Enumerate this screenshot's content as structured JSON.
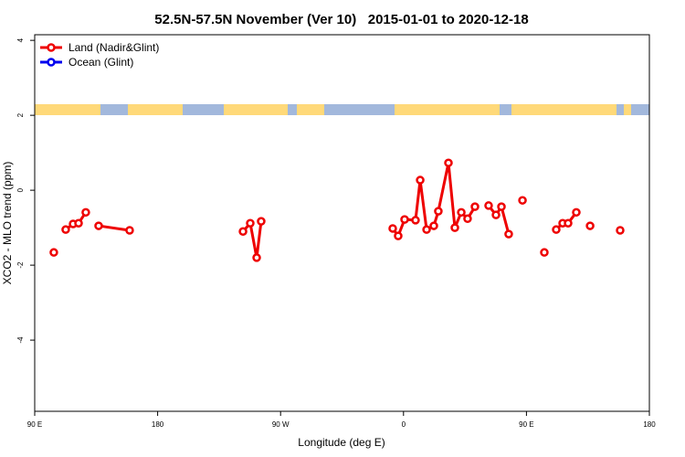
{
  "chart_data": {
    "type": "line",
    "title": "52.5N-57.5N November (Ver 10)   2015-01-01 to 2020-12-18",
    "x_label": "Longitude (deg E)",
    "y_label": "XCO2 - MLO trend (ppm)",
    "xlim": [
      90,
      540
    ],
    "ylim": [
      -5.9,
      4.15
    ],
    "xticks": [
      {
        "value": 90,
        "label": "90 E"
      },
      180,
      {
        "value": 270,
        "label": "90 W"
      },
      {
        "value": 360,
        "label": "0"
      },
      {
        "value": 450,
        "label": "90 E"
      },
      {
        "value": 540,
        "label": "180"
      }
    ],
    "yticks": [
      -4,
      -2,
      0,
      2,
      4
    ],
    "legend_position": "top-left",
    "series": [
      {
        "name": "Land (Nadir&Glint)",
        "color": "#ee0000",
        "x": [
          104.0,
          null,
          112.7,
          118.1,
          122.1,
          127.4,
          null,
          136.8,
          159.5,
          null,
          242.5,
          247.8,
          252.5,
          255.8,
          null,
          352.1,
          356.1,
          360.8,
          368.8,
          372.2,
          376.9,
          382.2,
          385.5,
          392.9,
          397.6,
          402.3,
          406.9,
          412.3,
          null,
          422.3,
          427.7,
          431.7,
          437.0,
          null,
          447.1,
          null,
          463.1,
          null,
          471.8,
          476.5,
          480.5,
          486.5,
          null,
          496.6,
          null,
          518.6
        ],
        "values": [
          -1.66,
          null,
          -1.05,
          -0.9,
          -0.88,
          -0.59,
          null,
          -0.95,
          -1.07,
          null,
          -1.1,
          -0.88,
          -1.8,
          -0.83,
          null,
          -1.02,
          -1.22,
          -0.78,
          -0.8,
          0.27,
          -1.05,
          -0.95,
          -0.56,
          0.73,
          -1.0,
          -0.59,
          -0.76,
          -0.44,
          null,
          -0.41,
          -0.66,
          -0.44,
          -1.17,
          null,
          -0.27,
          null,
          -1.66,
          null,
          -1.05,
          -0.88,
          -0.88,
          -0.59,
          null,
          -0.95,
          null,
          -1.07
        ]
      },
      {
        "name": "Ocean (Glint)",
        "color": "#0000ee",
        "x": [],
        "values": []
      }
    ]
  }
}
